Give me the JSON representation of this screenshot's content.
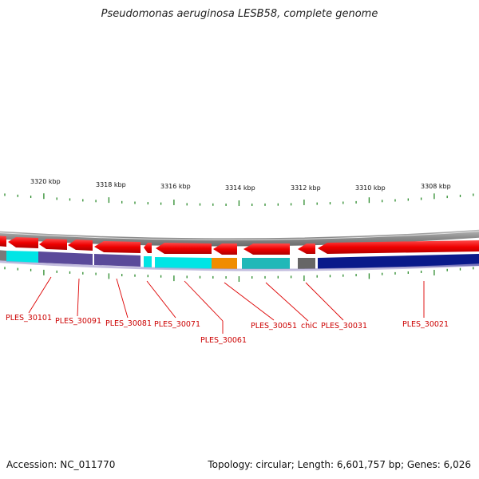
{
  "title": "Pseudomonas aeruginosa LESB58, complete genome",
  "footer": {
    "accession": "Accession: NC_011770",
    "topology": "Topology: circular; Length: 6,601,757 bp; Genes: 6,026"
  },
  "scale_labels": [
    "3320 kbp",
    "3318 kbp",
    "3316 kbp",
    "3314 kbp",
    "3312 kbp",
    "3310 kbp",
    "3308 kbp"
  ],
  "gene_labels": [
    "PLES_30101",
    "PLES_30091",
    "PLES_30081",
    "PLES_30071",
    "PLES_30061",
    "PLES_30051",
    "chiC",
    "PLES_30031",
    "PLES_30021"
  ],
  "colors": {
    "forward_gene": "#ee0000",
    "backbone": "#999999",
    "tick": "#2a8a2a",
    "label_line": "#dd0000",
    "cyan": "#00e5e5",
    "teal": "#20b8b8",
    "slate": "#5a4a9a",
    "orange": "#f08c00",
    "grey": "#666666",
    "navy": "#0a1a8a"
  }
}
